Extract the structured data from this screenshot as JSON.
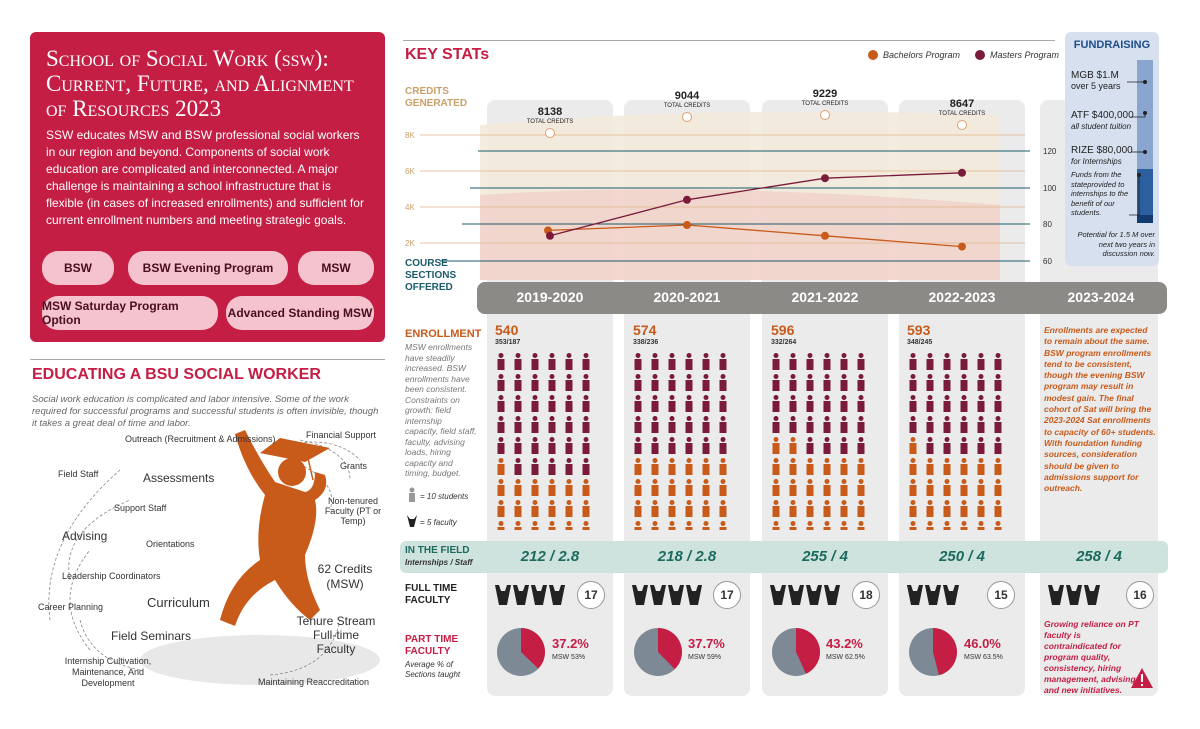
{
  "intro": {
    "title": "School of Social Work (ssw): Current, Future, and Alignment of Resources 2023",
    "body": "SSW educates MSW and BSW professional social workers in our region and beyond. Components of social work education are complicated and interconnected. A major challenge is maintaining a school infrastructure that is flexible (in cases of increased enrollments) and sufficient for current enrollment numbers and meeting strategic goals.",
    "programs": [
      "BSW",
      "BSW Evening Program",
      "MSW",
      "MSW Saturday Program Option",
      "Advanced Standing MSW"
    ]
  },
  "educating": {
    "title": "EDUCATING A BSU SOCIAL WORKER",
    "text": "Social work education is complicated and labor intensive. Some of the work required for successful programs and successful students is often invisible, though it takes a great deal of time and labor.",
    "items": [
      "Outreach (Recruitment & Admissions)",
      "Financial Support",
      "Field Staff",
      "Assessments",
      "Grants",
      "Support Staff",
      "Non-tenured Faculty (PT or Temp)",
      "Advising",
      "Orientations",
      "62 Credits (MSW)",
      "Leadership Coordinators",
      "Career Planning",
      "Curriculum",
      "Tenure Stream Full-time Faculty",
      "Field Seminars",
      "Internship Cultivation, Maintenance, And Development",
      "Maintaining Reaccreditation"
    ]
  },
  "key_stats": {
    "title": "KEY STATs",
    "legend": [
      "Bachelors Program",
      "Masters Program"
    ],
    "credits_label": "CREDITS GENERATED",
    "sections_label": "COURSE SECTIONS OFFERED",
    "total_credits_label": "TOTAL CREDITS",
    "years": [
      "2019-2020",
      "2020-2021",
      "2021-2022",
      "2022-2023",
      "2023-2024"
    ],
    "enrollment_label": "ENROLLMENT",
    "enrollment_note": "MSW enrollments have steadily increased. BSW enrollments have been consistent. Constraints on growth: field internship capacity, field staff, faculty, advising loads, hiring capacity and timing, budget.",
    "icon_legend": [
      "= 10 students",
      "= 5 faculty"
    ],
    "future_note": "Enrollments are expected to remain about the same. BSW program enrollments tend to be consistent, though the evening BSW program may result in modest gain. The final cohort of Sat will bring the 2023-2024 Sat enrollments to capacity of 60+ students. With foundation funding sources, consideration should be given to admissions support for outreach.",
    "field_label": "IN THE FIELD",
    "field_sub": "Internships / Staff",
    "fulltime_label": "FULL TIME FACULTY",
    "parttime_label": "PART TIME FACULTY",
    "parttime_sub": "Average % of Sections taught",
    "pt_note": "Growing reliance on PT faculty is contraindicated for program quality, consistency, hiring management, advising, and new initiatives."
  },
  "fundraising": {
    "title": "FUNDRAISING",
    "items": [
      {
        "amount": "MGB $1.M",
        "desc": "over 5 years"
      },
      {
        "amount": "ATF $400,000",
        "desc": "all student tuition"
      },
      {
        "amount": "RIZE $80,000",
        "desc": "for Internships"
      }
    ],
    "note": "Funds from the stateprovided to internships to the benefit of our students.",
    "potential": "Potential for 1.5 M over next two years in discussion now."
  },
  "chart_data": {
    "type": "line",
    "x": [
      "2019-2020",
      "2020-2021",
      "2021-2022",
      "2022-2023"
    ],
    "credits_ticks": [
      "8K",
      "6K",
      "4K",
      "2K"
    ],
    "sections_ticks": [
      "120",
      "100",
      "80",
      "60"
    ],
    "total_credits": [
      "8138",
      "9044",
      "9229",
      "8647"
    ],
    "series": [
      {
        "name": "Bachelors Program",
        "color": "#c85a1a",
        "values": [
          2700,
          3000,
          2400,
          1800
        ]
      },
      {
        "name": "Masters Program",
        "color": "#7a1b3a",
        "values": [
          2400,
          4400,
          5600,
          5900
        ]
      }
    ],
    "enrollment": [
      {
        "total": "540",
        "split": "353/187",
        "msw_icons": 35,
        "bsw_icons": 19
      },
      {
        "total": "574",
        "split": "338/236",
        "msw_icons": 34,
        "bsw_icons": 24
      },
      {
        "total": "596",
        "split": "332/264",
        "msw_icons": 33,
        "bsw_icons": 26
      },
      {
        "total": "593",
        "split": "348/245",
        "msw_icons": 35,
        "bsw_icons": 25
      }
    ],
    "field": [
      "212 / 2.8",
      "218 / 2.8",
      "255 / 4",
      "250 / 4",
      "258 / 4"
    ],
    "fulltime_faculty": [
      "17",
      "17",
      "18",
      "15",
      "16"
    ],
    "parttime_pct": [
      {
        "pct": "37.2%",
        "msw": "MSW 53%",
        "value": 37.2
      },
      {
        "pct": "37.7%",
        "msw": "MSW 59%",
        "value": 37.7
      },
      {
        "pct": "43.2%",
        "msw": "MSW 62.5%",
        "value": 43.2
      },
      {
        "pct": "46.0%",
        "msw": "MSW 63.5%",
        "value": 46.0
      }
    ]
  },
  "colors": {
    "crimson": "#c41e45",
    "orange": "#c85a1a",
    "maroon": "#7a1b3a",
    "teal": "#1b5b6b"
  }
}
